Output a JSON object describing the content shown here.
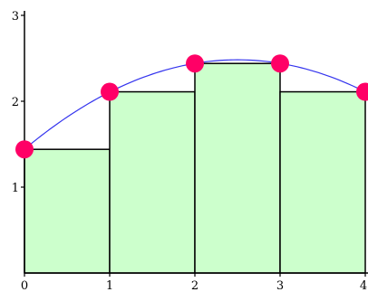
{
  "chart_data": {
    "type": "bar",
    "title": "",
    "xlabel": "",
    "ylabel": "",
    "xlim": [
      0,
      4
    ],
    "ylim": [
      0,
      3
    ],
    "grid": false,
    "x_ticks": [
      {
        "value": 0,
        "label": "0"
      },
      {
        "value": 1,
        "label": "1"
      },
      {
        "value": 2,
        "label": "2"
      },
      {
        "value": 3,
        "label": "3"
      },
      {
        "value": 4,
        "label": "4"
      }
    ],
    "y_ticks": [
      {
        "value": 1,
        "label": "1"
      },
      {
        "value": 2,
        "label": "2"
      },
      {
        "value": 3,
        "label": "3"
      }
    ],
    "bars": [
      {
        "x_start": 0,
        "x_end": 1,
        "height": 1.44
      },
      {
        "x_start": 1,
        "x_end": 2,
        "height": 2.11
      },
      {
        "x_start": 2,
        "x_end": 3,
        "height": 2.44
      },
      {
        "x_start": 3,
        "x_end": 4,
        "height": 2.11
      }
    ],
    "curve": {
      "description": "quadratic",
      "points": [
        {
          "x": 0,
          "y": 1.44
        },
        {
          "x": 1,
          "y": 2.11
        },
        {
          "x": 2,
          "y": 2.44
        },
        {
          "x": 3,
          "y": 2.44
        },
        {
          "x": 4,
          "y": 2.11
        }
      ]
    },
    "markers": [
      {
        "x": 0,
        "y": 1.44
      },
      {
        "x": 1,
        "y": 2.11
      },
      {
        "x": 2,
        "y": 2.44
      },
      {
        "x": 3,
        "y": 2.44
      },
      {
        "x": 4,
        "y": 2.11
      }
    ],
    "colors": {
      "bar_fill": "#ccffcc",
      "bar_stroke": "#000000",
      "curve": "#3333ee",
      "marker": "#ff0066",
      "axis": "#000000"
    }
  }
}
